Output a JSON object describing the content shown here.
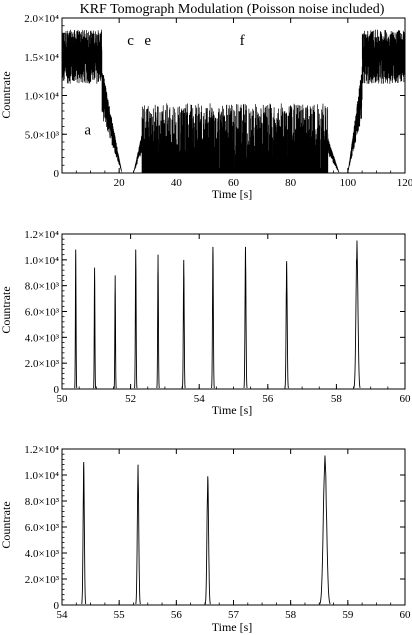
{
  "chart_data": [
    {
      "type": "line",
      "title": "KRF Tomograph Modulation (Poisson noise included)",
      "xlabel": "Time [s]",
      "ylabel": "Countrate",
      "xlim": [
        0,
        120
      ],
      "ylim": [
        0,
        20000
      ],
      "x_ticks": [
        20,
        40,
        60,
        80,
        100,
        120
      ],
      "x_tick_labels": [
        "20",
        "40",
        "60",
        "80",
        "100",
        "120"
      ],
      "y_ticks": [
        0,
        5000,
        10000,
        15000,
        20000
      ],
      "y_tick_labels": [
        "0",
        "5.0×10³",
        "1.0×10⁴",
        "1.5×10⁴",
        "2.0×10⁴"
      ],
      "annotations": [
        {
          "text": "a",
          "x": 9,
          "y": 5000
        },
        {
          "text": "c",
          "x": 24,
          "y": 16500
        },
        {
          "text": "e",
          "x": 30,
          "y": 16500
        },
        {
          "text": "f",
          "x": 63,
          "y": 16500
        }
      ],
      "segments": [
        {
          "x_start": 0,
          "x_end": 14,
          "y_low": 11500,
          "y_high": 18500,
          "pattern": "dense-noise"
        },
        {
          "x_start": 14,
          "x_end": 21,
          "y_from": 12000,
          "y_to": 0,
          "pattern": "ramp-down"
        },
        {
          "x_start": 21,
          "x_end": 25,
          "y_low": 0,
          "y_high": 0,
          "pattern": "zero"
        },
        {
          "x_start": 25,
          "x_end": 28,
          "y_from": 0,
          "y_to": 4500,
          "pattern": "ramp-up"
        },
        {
          "x_start": 28,
          "x_end": 93,
          "y_low": 4000,
          "y_high": 9000,
          "pattern": "sparse-noise"
        },
        {
          "x_start": 93,
          "x_end": 97,
          "y_from": 4000,
          "y_to": 0,
          "pattern": "ramp-down"
        },
        {
          "x_start": 97,
          "x_end": 100,
          "y_low": 0,
          "y_high": 0,
          "pattern": "zero"
        },
        {
          "x_start": 100,
          "x_end": 105,
          "y_from": 0,
          "y_to": 12000,
          "pattern": "ramp-up"
        },
        {
          "x_start": 105,
          "x_end": 120,
          "y_low": 11500,
          "y_high": 18500,
          "pattern": "dense-noise"
        }
      ],
      "grid": false,
      "legend": "none"
    },
    {
      "type": "line",
      "title": "",
      "xlabel": "Time [s]",
      "ylabel": "Countrate",
      "xlim": [
        50,
        60
      ],
      "ylim": [
        0,
        12000
      ],
      "x_ticks": [
        50,
        52,
        54,
        56,
        58,
        60
      ],
      "x_tick_labels": [
        "50",
        "52",
        "54",
        "56",
        "58",
        "60"
      ],
      "y_ticks": [
        0,
        2000,
        4000,
        6000,
        8000,
        10000,
        12000
      ],
      "y_tick_labels": [
        "0",
        "2.0×10³",
        "4.0×10³",
        "6.0×10³",
        "8.0×10³",
        "1.0×10⁴",
        "1.2×10⁴"
      ],
      "peaks": [
        {
          "x": 50.4,
          "height": 10800,
          "width": 0.03
        },
        {
          "x": 50.95,
          "height": 9400,
          "width": 0.03
        },
        {
          "x": 51.55,
          "height": 8800,
          "width": 0.03
        },
        {
          "x": 52.15,
          "height": 10800,
          "width": 0.035
        },
        {
          "x": 52.8,
          "height": 10400,
          "width": 0.035
        },
        {
          "x": 53.55,
          "height": 10000,
          "width": 0.04
        },
        {
          "x": 54.4,
          "height": 11000,
          "width": 0.04
        },
        {
          "x": 55.35,
          "height": 11000,
          "width": 0.045
        },
        {
          "x": 56.55,
          "height": 9900,
          "width": 0.05
        },
        {
          "x": 58.6,
          "height": 11500,
          "width": 0.09
        }
      ],
      "grid": false,
      "legend": "none"
    },
    {
      "type": "line",
      "title": "",
      "xlabel": "Time [s]",
      "ylabel": "Countrate",
      "xlim": [
        54,
        60
      ],
      "ylim": [
        0,
        12000
      ],
      "x_ticks": [
        54,
        55,
        56,
        57,
        58,
        59,
        60
      ],
      "x_tick_labels": [
        "54",
        "55",
        "56",
        "57",
        "58",
        "59",
        "60"
      ],
      "y_ticks": [
        0,
        2000,
        4000,
        6000,
        8000,
        10000,
        12000
      ],
      "y_tick_labels": [
        "0",
        "2.0×10³",
        "4.0×10³",
        "6.0×10³",
        "8.0×10³",
        "1.0×10⁴",
        "1.2×10⁴"
      ],
      "peaks": [
        {
          "x": 54.38,
          "height": 11000,
          "width": 0.035
        },
        {
          "x": 55.33,
          "height": 10800,
          "width": 0.04
        },
        {
          "x": 56.55,
          "height": 9900,
          "width": 0.045
        },
        {
          "x": 58.6,
          "height": 11500,
          "width": 0.09
        }
      ],
      "grid": false,
      "legend": "none"
    }
  ]
}
